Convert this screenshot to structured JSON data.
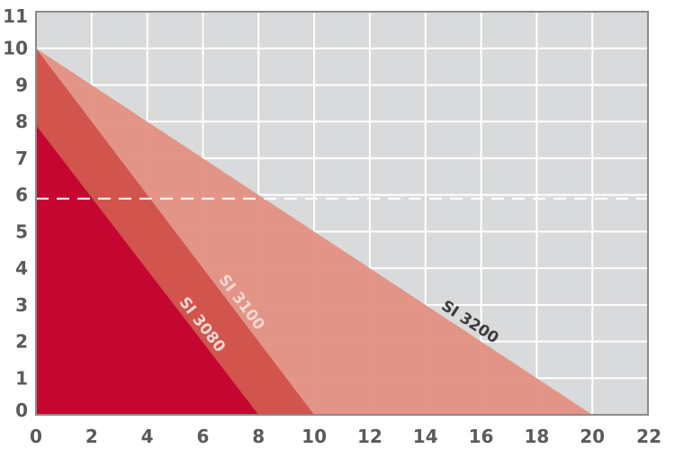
{
  "chart_data": {
    "type": "area",
    "title": "",
    "xlabel": "",
    "ylabel": "",
    "xlim": [
      0,
      22
    ],
    "ylim": [
      0,
      11
    ],
    "x_ticks": [
      "0",
      "2",
      "4",
      "6",
      "8",
      "10",
      "12",
      "14",
      "16",
      "18",
      "20",
      "22"
    ],
    "y_ticks": [
      "0",
      "1",
      "2",
      "3",
      "4",
      "5",
      "6",
      "7",
      "8",
      "9",
      "10",
      "11"
    ],
    "grid": true,
    "reference_line": {
      "axis": "y",
      "value": 5.9,
      "style": "dashed"
    },
    "series": [
      {
        "name": "SI 3200",
        "x": [
          0,
          20
        ],
        "y": [
          10,
          0
        ],
        "color": "#e28f80"
      },
      {
        "name": "SI 3100",
        "x": [
          0,
          10
        ],
        "y": [
          10,
          0
        ],
        "color": "#d04f48"
      },
      {
        "name": "SI 3080",
        "x": [
          0,
          8
        ],
        "y": [
          7.9,
          0
        ],
        "color": "#c3002f"
      }
    ],
    "colors": {
      "plot_background": "#d9dadb",
      "grid": "#ffffff",
      "frame": "#8a8a8a",
      "label_dark": "#3c3c3c",
      "label_light": "#f2d8d2"
    }
  }
}
